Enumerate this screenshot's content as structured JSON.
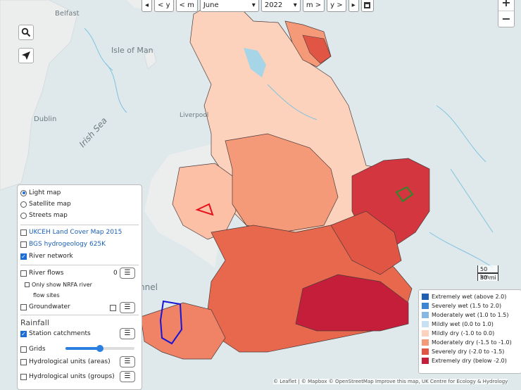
{
  "map": {
    "place_labels": [
      "Isle of Man",
      "Irish Sea",
      "Dublin",
      "Liverpool",
      "Belfast",
      "nnel"
    ]
  },
  "date_bar": {
    "first_label": "◂",
    "prev_year_label": "< y",
    "prev_month_label": "< m",
    "month_value": "June",
    "year_value": "2022",
    "next_month_label": "m >",
    "next_year_label": "y >",
    "last_label": "▸"
  },
  "zoom": {
    "in_label": "+",
    "out_label": "−"
  },
  "layers": {
    "basemaps": [
      "Light map",
      "Satellite map",
      "Streets map"
    ],
    "selected_basemap": "Light map",
    "overlays": [
      {
        "label": "UKCEH Land Cover Map 2015",
        "checked": false,
        "link": true
      },
      {
        "label": "BGS hydrogeology 625K",
        "checked": false,
        "link": true
      },
      {
        "label": "River network",
        "checked": true,
        "link": false
      }
    ],
    "river_flows_label": "River flows",
    "river_flows_count": "0",
    "nrfa_only_label": "Only show NRFA river",
    "nrfa_link": "NRFA",
    "flow_sites_label": "flow sites",
    "groundwater_label": "Groundwater",
    "rainfall_heading": "Rainfall",
    "station_catchments_label": "Station catchments",
    "grids_label": "Grids",
    "grid_opacity": 0.5,
    "hydro_units_areas_label": "Hydrological units (areas)",
    "hydro_units_groups_label": "Hydrological units (groups)"
  },
  "legend": {
    "items": [
      {
        "label": "Extremely wet (above 2.0)",
        "color": "#1f5fb4"
      },
      {
        "label": "Severely wet (1.5 to 2.0)",
        "color": "#3a86d4"
      },
      {
        "label": "Moderately wet (1.0 to 1.5)",
        "color": "#86b8e6"
      },
      {
        "label": "Mildly wet (0.0 to 1.0)",
        "color": "#c7e0f4"
      },
      {
        "label": "Mildly dry (-1.0 to 0.0)",
        "color": "#fcd2bd"
      },
      {
        "label": "Moderately dry (-1.5 to -1.0)",
        "color": "#f59a78"
      },
      {
        "label": "Severely dry (-2.0 to -1.5)",
        "color": "#e05544"
      },
      {
        "label": "Extremely dry (below -2.0)",
        "color": "#c41e3a"
      }
    ]
  },
  "scale": {
    "km": "50 km",
    "mi": "30 mi"
  },
  "attribution": "© Leaflet | © Mapbox © OpenStreetMap Improve this map, UK Centre for Ecology & Hydrology"
}
